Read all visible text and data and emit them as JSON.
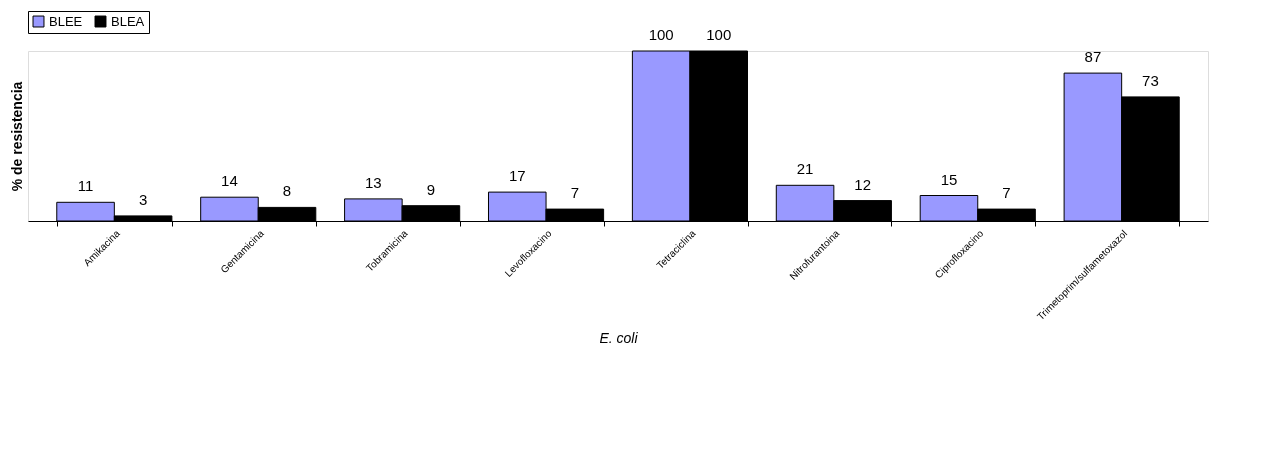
{
  "chart_data": {
    "type": "bar",
    "ylabel": "% de resistencia",
    "xlabel": "E. coli",
    "categories": [
      "Amikacina",
      "Gentamicina",
      "Tobramicina",
      "Levofloxacino",
      "Tetraciclina",
      "Nitrofurantoina",
      "Ciprofloxacino",
      "Trimetoprim/sulfametoxazol"
    ],
    "series": [
      {
        "name": "BLEE",
        "color": "#9999ff",
        "values": [
          11,
          14,
          13,
          17,
          100,
          21,
          15,
          87
        ]
      },
      {
        "name": "BLEA",
        "color": "#000000",
        "values": [
          3,
          8,
          9,
          7,
          100,
          12,
          7,
          73
        ]
      }
    ],
    "data_labels": true,
    "legend": "top",
    "grid": false
  }
}
